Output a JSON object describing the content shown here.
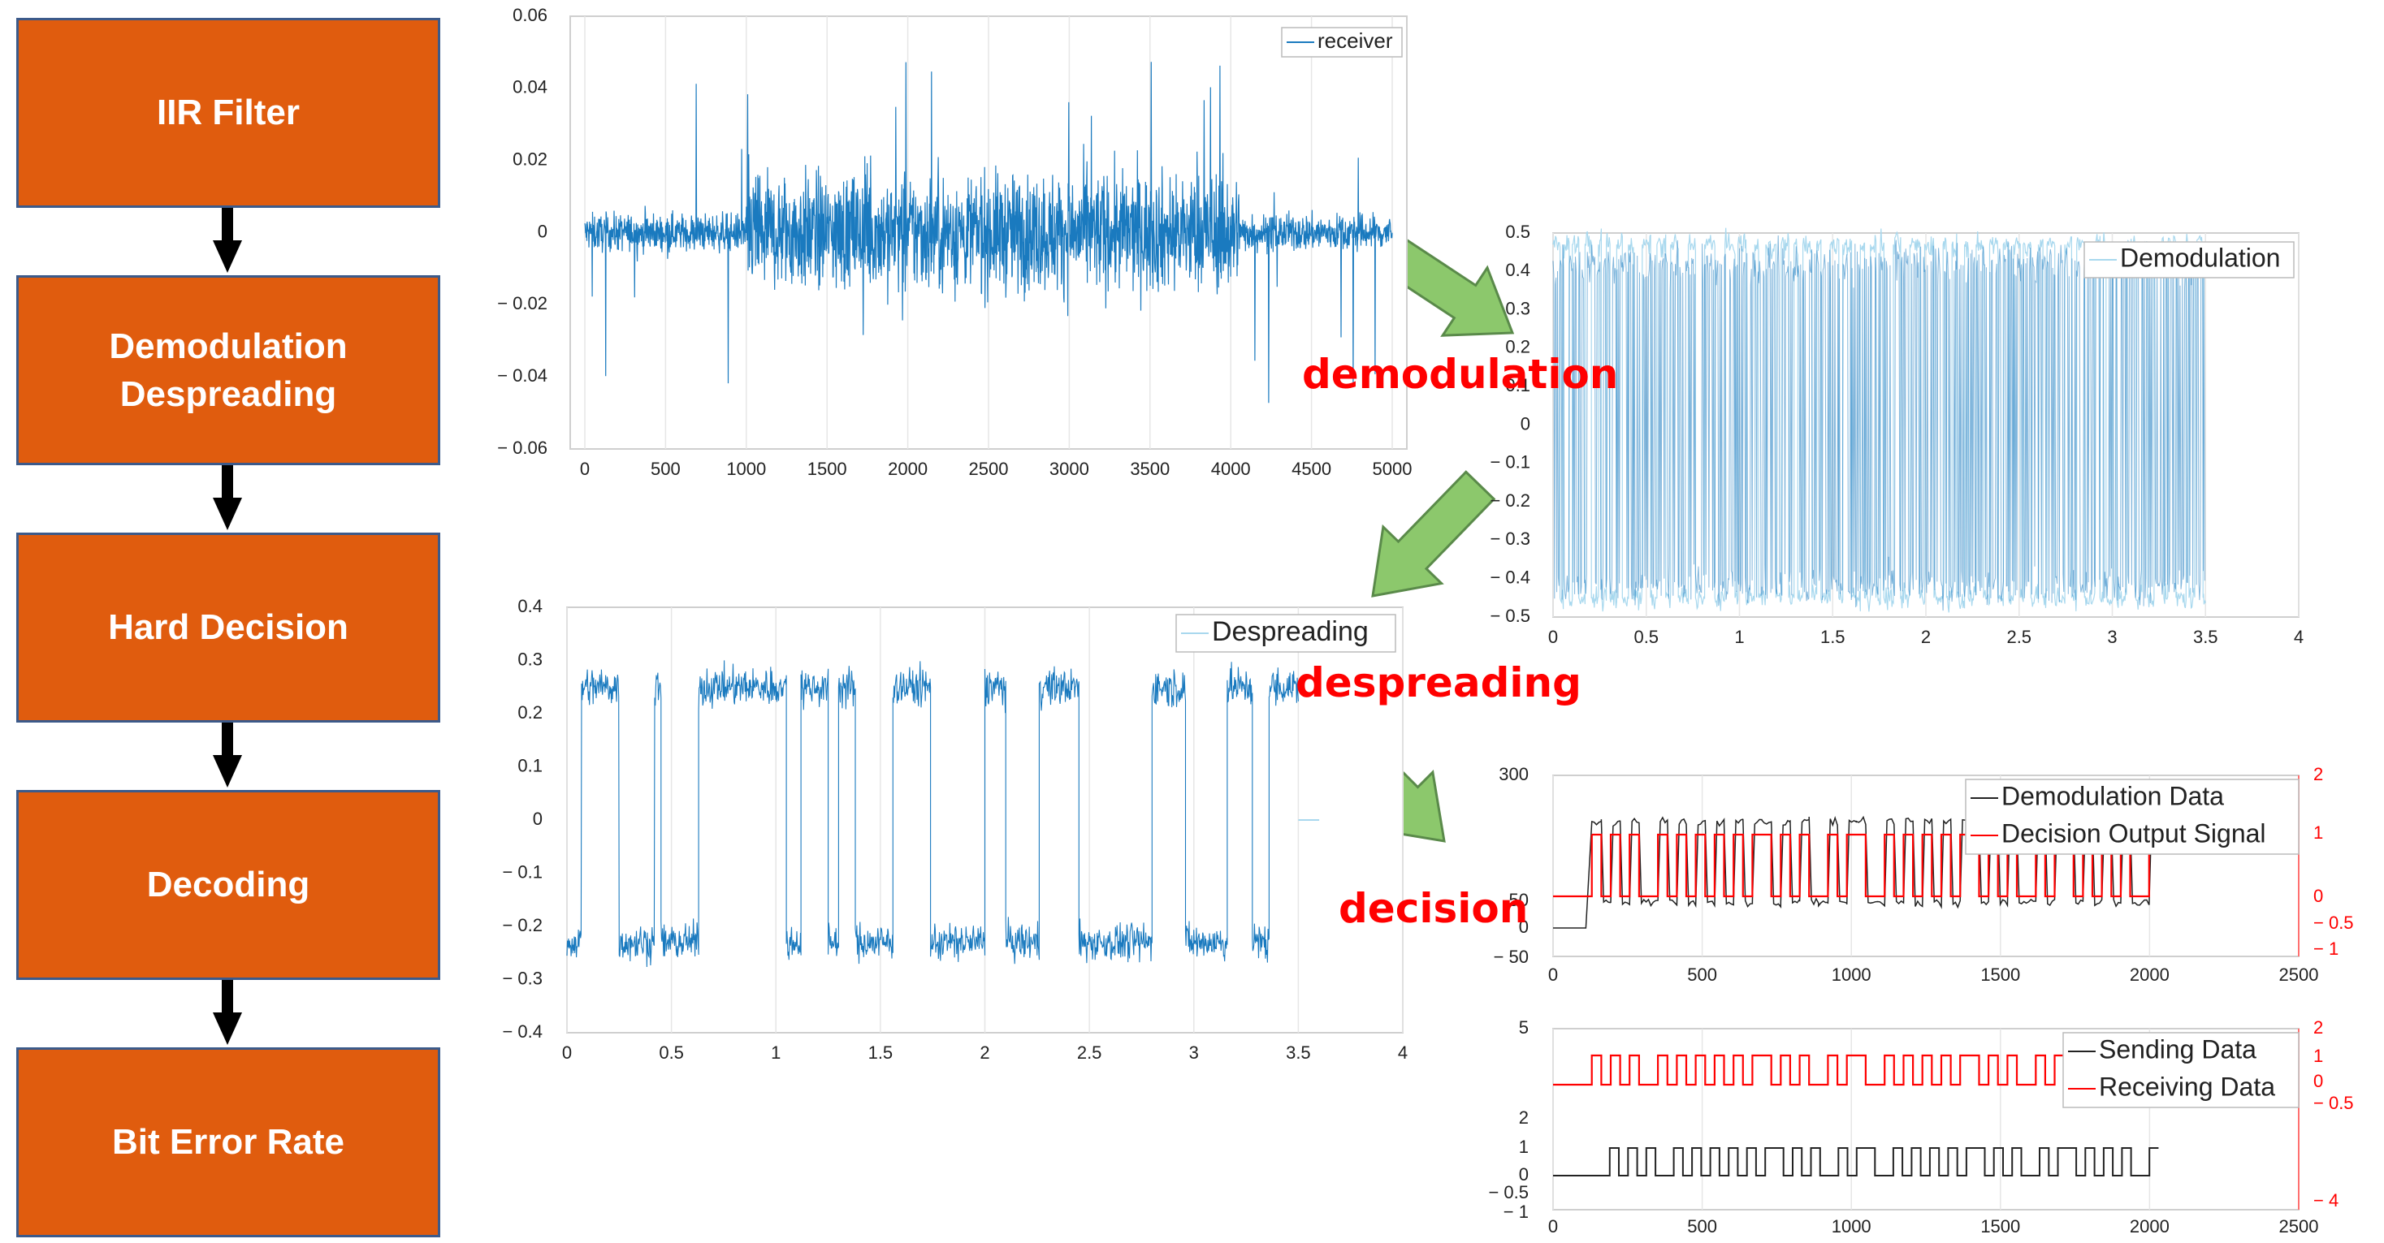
{
  "flow_blocks": [
    {
      "label": "IIR Filter"
    },
    {
      "label": "Demodulation\nDespreading"
    },
    {
      "label": "Hard Decision"
    },
    {
      "label": "Decoding"
    },
    {
      "label": "Bit Error Rate"
    }
  ],
  "flow_labels": {
    "demodulation": "demodulation",
    "despreading": "despreading",
    "decision": "decision"
  },
  "colors": {
    "block_fill": "#e05c0e",
    "block_border": "#3c5a8a",
    "signal_blue": "#1a7abf",
    "signal_light": "#a8d8ee",
    "arrow_green": "#8cc86c",
    "red": "#ff0000"
  },
  "chart_data": [
    {
      "type": "line",
      "title": "",
      "series": [
        {
          "name": "receiver",
          "description": "noisy signal, amplitude ~0.006 at t<1000 and t>4000, ~0.02 between 1000 and 4000, spikes to about +/-0.05"
        }
      ],
      "ylim": [
        -0.06,
        0.06
      ],
      "y_ticks": [
        "0.06",
        "0.04",
        "0.02",
        "0",
        "− 0.02",
        "− 0.04",
        "− 0.06"
      ],
      "xlim": [
        0,
        5000
      ],
      "x_ticks": [
        "0",
        "500",
        "1000",
        "1500",
        "2000",
        "2500",
        "3000",
        "3500",
        "4000",
        "4500",
        "5000"
      ],
      "legend": "top-right"
    },
    {
      "type": "line",
      "title": "",
      "series": [
        {
          "name": "Demodulation",
          "description": "rapid square switching between about 0.4-0.5 and -0.4-0.5, ending at x=3.5"
        }
      ],
      "ylim": [
        -0.5,
        0.5
      ],
      "y_ticks": [
        "0.5",
        "0.4",
        "0.3",
        "0.2",
        "0.1",
        "0",
        "− 0.1",
        "− 0.2",
        "− 0.3",
        "− 0.4",
        "− 0.5"
      ],
      "xlim": [
        0,
        4
      ],
      "x_ticks": [
        "0",
        "0.5",
        "1",
        "1.5",
        "2",
        "2.5",
        "3",
        "3.5",
        "4"
      ],
      "legend": "top-right"
    },
    {
      "type": "line",
      "title": "",
      "series": [
        {
          "name": "Despreading",
          "level_high": 0.25,
          "level_low": -0.23,
          "segments": [
            [
              0,
              0.07,
              -1
            ],
            [
              0.07,
              0.25,
              1
            ],
            [
              0.25,
              0.42,
              -1
            ],
            [
              0.42,
              0.45,
              1
            ],
            [
              0.45,
              0.63,
              -1
            ],
            [
              0.63,
              0.72,
              1
            ],
            [
              0.72,
              1.0,
              1
            ],
            [
              1.0,
              1.05,
              1
            ],
            [
              1.05,
              1.12,
              -1
            ],
            [
              1.12,
              1.25,
              1
            ],
            [
              1.25,
              1.3,
              -1
            ],
            [
              1.3,
              1.38,
              1
            ],
            [
              1.38,
              1.56,
              -1
            ],
            [
              1.56,
              1.74,
              1
            ],
            [
              1.74,
              2.0,
              -1
            ],
            [
              2.0,
              2.1,
              1
            ],
            [
              2.1,
              2.26,
              -1
            ],
            [
              2.26,
              2.45,
              1
            ],
            [
              2.45,
              2.8,
              -1
            ],
            [
              2.8,
              2.96,
              1
            ],
            [
              2.96,
              3.16,
              -1
            ],
            [
              3.16,
              3.28,
              1
            ],
            [
              3.28,
              3.36,
              -1
            ],
            [
              3.36,
              3.5,
              1
            ]
          ],
          "tail": [
            [
              3.5,
              0
            ],
            [
              3.6,
              0
            ]
          ]
        }
      ],
      "ylim": [
        -0.4,
        0.4
      ],
      "y_ticks": [
        "0.4",
        "0.3",
        "0.2",
        "0.1",
        "0",
        "− 0.1",
        "− 0.2",
        "− 0.3",
        "− 0.4"
      ],
      "xlim": [
        0,
        4
      ],
      "x_ticks": [
        "0",
        "0.5",
        "1",
        "1.5",
        "2",
        "2.5",
        "3",
        "3.5",
        "4"
      ],
      "legend": "top-right"
    },
    {
      "type": "line",
      "title": "",
      "series": [
        {
          "name": "Demodulation Data",
          "axis": "left",
          "description": "black, starts at 0 until ~120 then pulses between ~40 and ~225"
        },
        {
          "name": "Decision Output Signal",
          "axis": "right",
          "description": "red, starts at 0 until ~130 then pulses between 0 and 1"
        }
      ],
      "y_left_ticks": [
        "300",
        "50",
        "0",
        "− 50"
      ],
      "y_right_ticks": [
        "2",
        "1",
        "0",
        "− 0.5",
        "− 1"
      ],
      "xlim": [
        0,
        2500
      ],
      "x_ticks": [
        "0",
        "500",
        "1000",
        "1500",
        "2000",
        "2500"
      ],
      "legend": "top-right"
    },
    {
      "type": "line",
      "title": "",
      "series": [
        {
          "name": "Sending  Data",
          "axis": "left",
          "description": "black bit sequence between 0 and 1 from x~190 to ~2030"
        },
        {
          "name": "Receiving Data",
          "axis": "right",
          "description": "red bit sequence between 0 and 1 from x~130 to ~2030, drawn in upper half"
        }
      ],
      "bits": [
        1,
        0,
        1,
        0,
        1,
        0,
        0,
        1,
        0,
        1,
        0,
        1,
        0,
        1,
        0,
        1,
        0,
        1,
        1,
        0,
        1,
        0,
        1,
        0,
        0,
        1,
        0,
        1,
        1,
        0,
        0,
        1,
        0,
        1,
        0,
        1,
        0,
        1,
        0,
        1,
        1,
        0,
        1,
        0,
        1,
        0,
        0,
        1,
        0,
        1,
        1,
        0,
        1,
        0,
        1,
        0,
        1,
        0,
        0,
        1
      ],
      "y_left_ticks": [
        "5",
        "2",
        "1",
        "0",
        "− 0.5",
        "− 1"
      ],
      "y_right_ticks": [
        "2",
        "1",
        "0",
        "− 0.5",
        "− 4"
      ],
      "xlim": [
        0,
        2500
      ],
      "x_ticks": [
        "0",
        "500",
        "1000",
        "1500",
        "2000",
        "2500"
      ],
      "legend": "top-right"
    }
  ]
}
